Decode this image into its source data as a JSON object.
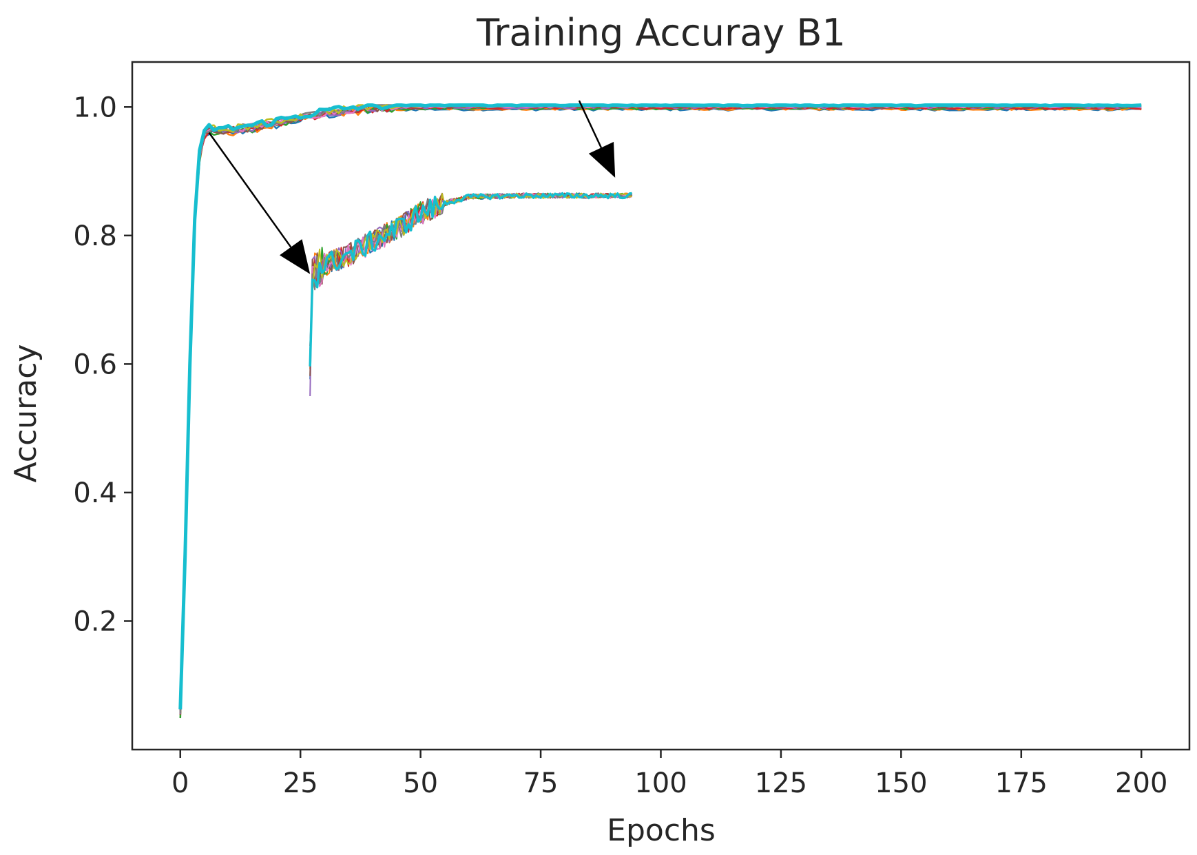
{
  "chart_data": {
    "type": "line",
    "title": "Training Accuray B1",
    "xlabel": "Epochs",
    "ylabel": "Accuracy",
    "xlim": [
      -10,
      210
    ],
    "ylim": [
      0.0,
      1.07
    ],
    "xticks": [
      0,
      25,
      50,
      75,
      100,
      125,
      150,
      175,
      200
    ],
    "yticks": [
      0.2,
      0.4,
      0.6,
      0.8,
      1.0
    ],
    "xtick_labels": [
      "0",
      "25",
      "50",
      "75",
      "100",
      "125",
      "150",
      "175",
      "200"
    ],
    "ytick_labels": [
      "0.2",
      "0.4",
      "0.6",
      "0.8",
      "1.0"
    ],
    "grid": false,
    "legend": "none",
    "series_count": 10,
    "series_colors": [
      "#1f77b4",
      "#ff7f0e",
      "#2ca02c",
      "#d62728",
      "#9467bd",
      "#8c564b",
      "#e377c2",
      "#7f7f7f",
      "#bcbd22",
      "#17becf"
    ],
    "main_curve": {
      "x": [
        0,
        1,
        2,
        3,
        4,
        5,
        6,
        8,
        10,
        15,
        20,
        25,
        30,
        35,
        40,
        50,
        60,
        75,
        100,
        125,
        150,
        175,
        200
      ],
      "y": [
        0.06,
        0.3,
        0.6,
        0.82,
        0.92,
        0.955,
        0.965,
        0.962,
        0.963,
        0.968,
        0.975,
        0.983,
        0.99,
        0.995,
        0.998,
        1.0,
        1.0,
        1.0,
        1.0,
        1.0,
        1.0,
        1.0,
        1.0
      ]
    },
    "inset_zoom": {
      "x": [
        27,
        27.3,
        28,
        29,
        30,
        32,
        35,
        40,
        45,
        50,
        55,
        60,
        70,
        80,
        90,
        94
      ],
      "y": [
        0.6,
        0.73,
        0.745,
        0.75,
        0.755,
        0.76,
        0.77,
        0.79,
        0.81,
        0.835,
        0.85,
        0.86,
        0.862,
        0.862,
        0.862,
        0.862
      ]
    },
    "annotation_arrows": [
      {
        "from": [
          6,
          0.96
        ],
        "to": [
          27,
          0.74
        ]
      },
      {
        "from": [
          83,
          1.01
        ],
        "to": [
          90.5,
          0.89
        ]
      }
    ]
  }
}
